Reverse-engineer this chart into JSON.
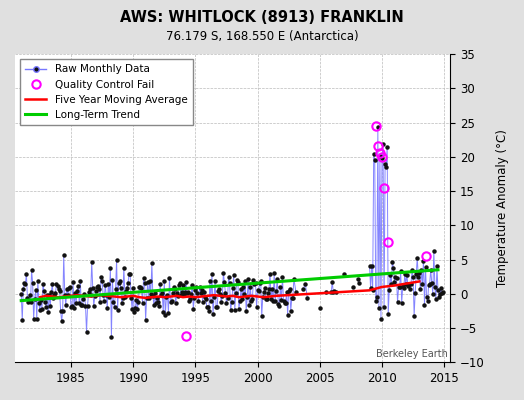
{
  "title": "AWS: WHITLOCK (8913) FRANKLIN",
  "subtitle": "76.179 S, 168.550 E (Antarctica)",
  "ylabel": "Temperature Anomaly (°C)",
  "watermark": "Berkeley Earth",
  "xlim": [
    1980.5,
    2015.5
  ],
  "ylim": [
    -10,
    35
  ],
  "yticks": [
    -10,
    -5,
    0,
    5,
    10,
    15,
    20,
    25,
    30,
    35
  ],
  "xticks": [
    1985,
    1990,
    1995,
    2000,
    2005,
    2010,
    2015
  ],
  "bg_color": "#e0e0e0",
  "plot_bg_color": "#ffffff",
  "grid_color": "#bbbbbb",
  "raw_line_color": "#7777ff",
  "raw_marker_color": "#111111",
  "qc_fail_color": "magenta",
  "moving_avg_color": "red",
  "trend_color": "#00cc00",
  "trend_x": [
    1981,
    2014.5
  ],
  "trend_y": [
    -1.0,
    3.5
  ],
  "moving_avg": [
    [
      1982.5,
      -0.5
    ],
    [
      1983.0,
      -0.3
    ],
    [
      1983.5,
      -0.4
    ],
    [
      1984.0,
      -0.5
    ],
    [
      1984.5,
      -0.4
    ],
    [
      1985.0,
      -0.3
    ],
    [
      1985.5,
      -0.2
    ],
    [
      1986.0,
      -0.3
    ],
    [
      1986.5,
      -0.4
    ],
    [
      1987.0,
      -0.3
    ],
    [
      1987.5,
      -0.2
    ],
    [
      1988.0,
      -0.3
    ],
    [
      1988.5,
      -0.4
    ],
    [
      1989.0,
      -0.5
    ],
    [
      1989.5,
      -0.4
    ],
    [
      1990.0,
      -0.3
    ],
    [
      1990.5,
      -0.5
    ],
    [
      1991.0,
      -0.6
    ],
    [
      1991.5,
      -0.5
    ],
    [
      1992.0,
      -0.4
    ],
    [
      1992.5,
      -0.5
    ],
    [
      1993.0,
      -0.4
    ],
    [
      1993.5,
      -0.3
    ],
    [
      1994.0,
      -0.5
    ],
    [
      1994.5,
      -0.4
    ],
    [
      1995.0,
      -0.5
    ],
    [
      1995.5,
      -0.4
    ],
    [
      1996.0,
      -0.3
    ],
    [
      1996.5,
      -0.2
    ],
    [
      1997.0,
      -0.3
    ],
    [
      1997.5,
      -0.4
    ],
    [
      1998.0,
      -0.3
    ],
    [
      1998.5,
      -0.5
    ],
    [
      1999.0,
      -0.4
    ],
    [
      1999.5,
      -0.3
    ],
    [
      2000.0,
      -0.4
    ],
    [
      2000.5,
      -0.5
    ],
    [
      2001.0,
      -0.4
    ],
    [
      2001.5,
      -0.3
    ],
    [
      2009.0,
      0.5
    ],
    [
      2010.0,
      1.0
    ],
    [
      2011.0,
      1.2
    ],
    [
      2012.0,
      1.5
    ],
    [
      2013.0,
      1.8
    ]
  ],
  "qc_points": [
    [
      2009.5,
      24.5
    ],
    [
      2009.67,
      21.5
    ],
    [
      2009.83,
      20.5
    ],
    [
      2010.0,
      20.0
    ],
    [
      2010.17,
      15.5
    ],
    [
      2010.5,
      7.5
    ],
    [
      2013.5,
      5.5
    ],
    [
      1994.25,
      -6.2
    ]
  ],
  "raw_monthly_seed": 17
}
